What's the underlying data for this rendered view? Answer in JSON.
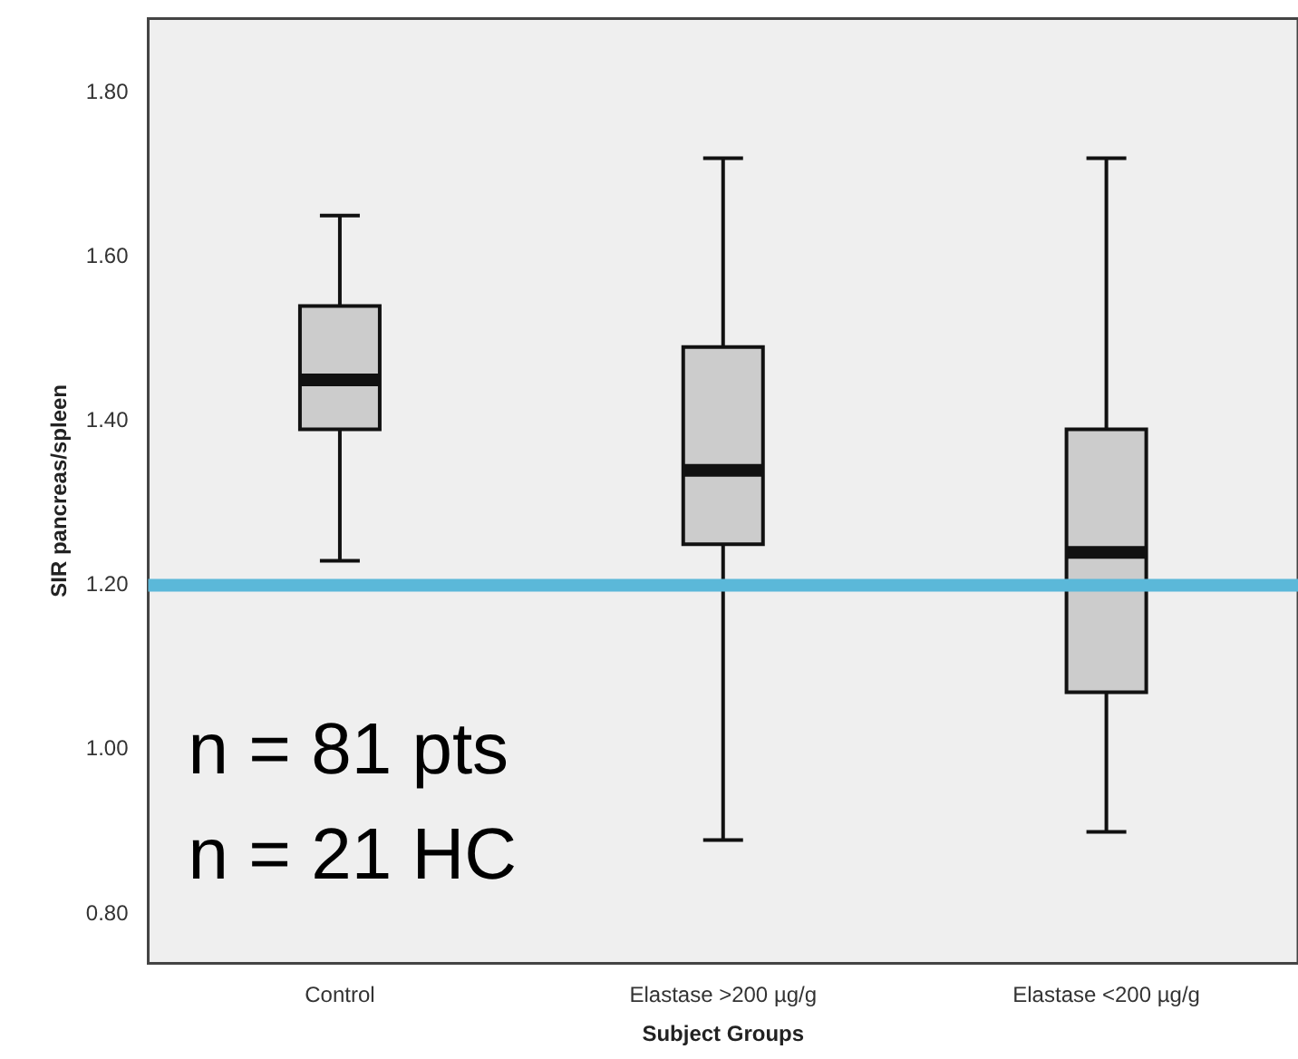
{
  "chart_data": {
    "type": "box",
    "xlabel": "Subject Groups",
    "ylabel": "SIR pancreas/spleen",
    "categories": [
      "Control",
      "Elastase >200 µg/g",
      "Elastase <200 µg/g"
    ],
    "boxes": [
      {
        "low": 1.23,
        "q1": 1.39,
        "median": 1.45,
        "q3": 1.54,
        "high": 1.65
      },
      {
        "low": 0.89,
        "q1": 1.25,
        "median": 1.34,
        "q3": 1.49,
        "high": 1.72
      },
      {
        "low": 0.9,
        "q1": 1.07,
        "median": 1.24,
        "q3": 1.39,
        "high": 1.72
      }
    ],
    "color": "#cccccc",
    "ylim": [
      0.74,
      1.89
    ],
    "yticks": [
      {
        "value": 0.8,
        "label": "0.80"
      },
      {
        "value": 1.0,
        "label": "1.00"
      },
      {
        "value": 1.2,
        "label": "1.20"
      },
      {
        "value": 1.4,
        "label": "1.40"
      },
      {
        "value": 1.6,
        "label": "1.60"
      },
      {
        "value": 1.8,
        "label": "1.80"
      }
    ],
    "ref_lines": [
      {
        "axis": "y",
        "value": 1.2,
        "color": "#5bb8d9"
      }
    ],
    "annotations": [
      "n = 81 pts",
      "n = 21 HC"
    ],
    "grid": false,
    "legend": false
  }
}
